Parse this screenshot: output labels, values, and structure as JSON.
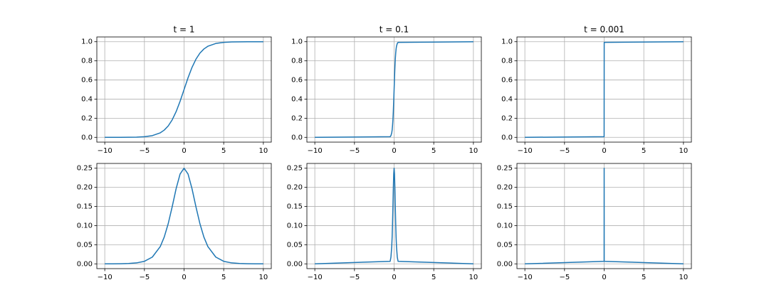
{
  "chart_data": [
    {
      "type": "line",
      "title": "t = 1",
      "color": "#1f77b4",
      "grid": true,
      "x": [
        -10,
        -9,
        -8,
        -7,
        -6,
        -5,
        -4,
        -3,
        -2.5,
        -2,
        -1.5,
        -1,
        -0.5,
        0,
        0.5,
        1,
        1.5,
        2,
        2.5,
        3,
        4,
        5,
        6,
        7,
        8,
        9,
        10
      ],
      "values": [
        0,
        0.0001,
        0.0003,
        0.0009,
        0.0025,
        0.0067,
        0.018,
        0.0474,
        0.0759,
        0.1192,
        0.1824,
        0.2689,
        0.3775,
        0.5,
        0.6225,
        0.7311,
        0.8176,
        0.8808,
        0.9241,
        0.9526,
        0.982,
        0.9933,
        0.9975,
        0.9991,
        0.9997,
        0.9999,
        1
      ],
      "xlim": [
        -11,
        11
      ],
      "ylim": [
        -0.05,
        1.05
      ],
      "xticks": [
        {
          "value": -10,
          "label": "−10"
        },
        {
          "value": -5,
          "label": "−5"
        },
        0,
        5,
        10
      ],
      "yticks": [
        {
          "value": 0,
          "label": "0.0"
        },
        0.2,
        0.4,
        0.6,
        0.8,
        {
          "value": 1,
          "label": "1.0"
        }
      ]
    },
    {
      "type": "line",
      "title": "t = 0.1",
      "color": "#1f77b4",
      "grid": true,
      "x": [
        -10,
        -0.5,
        -0.4,
        -0.3,
        -0.25,
        -0.2,
        -0.15,
        -0.1,
        -0.05,
        0,
        0.05,
        0.1,
        0.15,
        0.2,
        0.25,
        0.3,
        0.4,
        0.5,
        10
      ],
      "values": [
        0,
        0.0067,
        0.018,
        0.0474,
        0.0759,
        0.1192,
        0.1824,
        0.2689,
        0.3775,
        0.5,
        0.6225,
        0.7311,
        0.8176,
        0.8808,
        0.9241,
        0.9526,
        0.982,
        0.9933,
        1
      ],
      "xlim": [
        -11,
        11
      ],
      "ylim": [
        -0.05,
        1.05
      ],
      "xticks": [
        {
          "value": -10,
          "label": "−10"
        },
        {
          "value": -5,
          "label": "−5"
        },
        0,
        5,
        10
      ],
      "yticks": [
        {
          "value": 0,
          "label": "0.0"
        },
        0.2,
        0.4,
        0.6,
        0.8,
        {
          "value": 1,
          "label": "1.0"
        }
      ]
    },
    {
      "type": "line",
      "title": "t = 0.001",
      "color": "#1f77b4",
      "grid": true,
      "x": [
        -10,
        -0.005,
        0,
        0.005,
        10
      ],
      "values": [
        0,
        0.0067,
        0.5,
        0.9933,
        1
      ],
      "xlim": [
        -11,
        11
      ],
      "ylim": [
        -0.05,
        1.05
      ],
      "xticks": [
        {
          "value": -10,
          "label": "−10"
        },
        {
          "value": -5,
          "label": "−5"
        },
        0,
        5,
        10
      ],
      "yticks": [
        {
          "value": 0,
          "label": "0.0"
        },
        0.2,
        0.4,
        0.6,
        0.8,
        {
          "value": 1,
          "label": "1.0"
        }
      ]
    },
    {
      "type": "line",
      "color": "#1f77b4",
      "grid": true,
      "x": [
        -10,
        -9,
        -8,
        -7,
        -6,
        -5,
        -4,
        -3,
        -2.5,
        -2,
        -1.5,
        -1,
        -0.5,
        0,
        0.5,
        1,
        1.5,
        2,
        2.5,
        3,
        4,
        5,
        6,
        7,
        8,
        9,
        10
      ],
      "values": [
        0,
        0.0001,
        0.0003,
        0.0009,
        0.0025,
        0.0066,
        0.0177,
        0.0452,
        0.0701,
        0.105,
        0.1491,
        0.1966,
        0.235,
        0.25,
        0.235,
        0.1966,
        0.1491,
        0.105,
        0.0701,
        0.0452,
        0.0177,
        0.0066,
        0.0025,
        0.0009,
        0.0003,
        0.0001,
        0
      ],
      "xlim": [
        -11,
        11
      ],
      "ylim": [
        -0.0125,
        0.2625
      ],
      "xticks": [
        {
          "value": -10,
          "label": "−10"
        },
        {
          "value": -5,
          "label": "−5"
        },
        0,
        5,
        10
      ],
      "yticks": [
        {
          "value": 0,
          "label": "0.00"
        },
        {
          "value": 0.05,
          "label": "0.05"
        },
        {
          "value": 0.1,
          "label": "0.10"
        },
        {
          "value": 0.15,
          "label": "0.15"
        },
        {
          "value": 0.2,
          "label": "0.20"
        },
        {
          "value": 0.25,
          "label": "0.25"
        }
      ]
    },
    {
      "type": "line",
      "color": "#1f77b4",
      "grid": true,
      "x": [
        -10,
        -0.5,
        -0.4,
        -0.3,
        -0.25,
        -0.2,
        -0.15,
        -0.1,
        -0.05,
        0,
        0.05,
        0.1,
        0.15,
        0.2,
        0.25,
        0.3,
        0.4,
        0.5,
        10
      ],
      "values": [
        0,
        0.0066,
        0.0177,
        0.0452,
        0.0701,
        0.105,
        0.1491,
        0.1966,
        0.235,
        0.25,
        0.235,
        0.1966,
        0.1491,
        0.105,
        0.0701,
        0.0452,
        0.0177,
        0.0066,
        0
      ],
      "xlim": [
        -11,
        11
      ],
      "ylim": [
        -0.0125,
        0.2625
      ],
      "xticks": [
        {
          "value": -10,
          "label": "−10"
        },
        {
          "value": -5,
          "label": "−5"
        },
        0,
        5,
        10
      ],
      "yticks": [
        {
          "value": 0,
          "label": "0.00"
        },
        {
          "value": 0.05,
          "label": "0.05"
        },
        {
          "value": 0.1,
          "label": "0.10"
        },
        {
          "value": 0.15,
          "label": "0.15"
        },
        {
          "value": 0.2,
          "label": "0.20"
        },
        {
          "value": 0.25,
          "label": "0.25"
        }
      ]
    },
    {
      "type": "line",
      "color": "#1f77b4",
      "grid": true,
      "x": [
        -10,
        -0.005,
        0,
        0.005,
        10
      ],
      "values": [
        0,
        0.0066,
        0.25,
        0.0066,
        0
      ],
      "xlim": [
        -11,
        11
      ],
      "ylim": [
        -0.0125,
        0.2625
      ],
      "xticks": [
        {
          "value": -10,
          "label": "−10"
        },
        {
          "value": -5,
          "label": "−5"
        },
        0,
        5,
        10
      ],
      "yticks": [
        {
          "value": 0,
          "label": "0.00"
        },
        {
          "value": 0.05,
          "label": "0.05"
        },
        {
          "value": 0.1,
          "label": "0.10"
        },
        {
          "value": 0.15,
          "label": "0.15"
        },
        {
          "value": 0.2,
          "label": "0.20"
        },
        {
          "value": 0.25,
          "label": "0.25"
        }
      ]
    }
  ]
}
